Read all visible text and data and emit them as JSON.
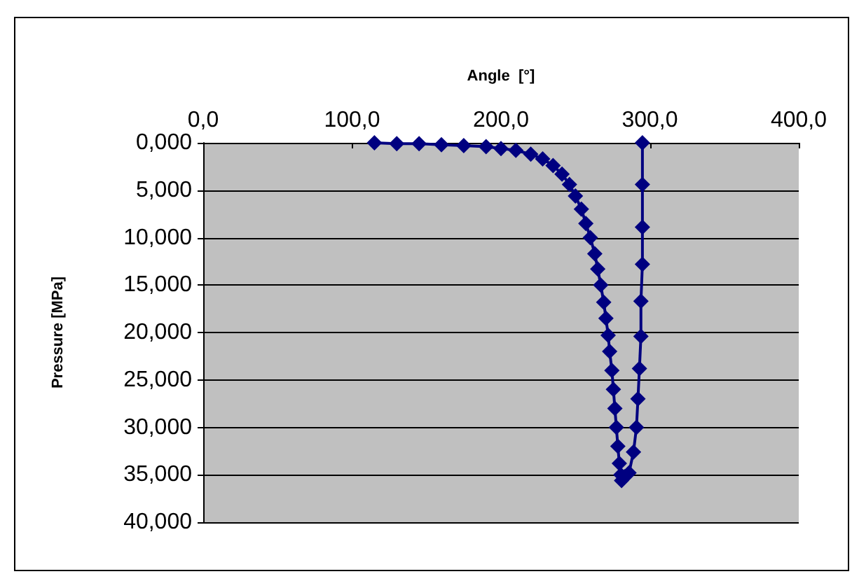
{
  "chart_data": {
    "type": "line",
    "xlabel": "Angle  [°]",
    "ylabel": "Pressure [MPa]",
    "xlim": [
      0,
      400
    ],
    "ylim": [
      40,
      0
    ],
    "xticks": [
      {
        "value": 0,
        "label": "0,0"
      },
      {
        "value": 100,
        "label": "100,0"
      },
      {
        "value": 200,
        "label": "200,0"
      },
      {
        "value": 300,
        "label": "300,0"
      },
      {
        "value": 400,
        "label": "400,0"
      }
    ],
    "yticks": [
      {
        "value": 0,
        "label": "0,000"
      },
      {
        "value": 5,
        "label": "5,000"
      },
      {
        "value": 10,
        "label": "10,000"
      },
      {
        "value": 15,
        "label": "15,000"
      },
      {
        "value": 20,
        "label": "20,000"
      },
      {
        "value": 25,
        "label": "25,000"
      },
      {
        "value": 30,
        "label": "30,000"
      },
      {
        "value": 35,
        "label": "35,000"
      },
      {
        "value": 40,
        "label": "40,000"
      }
    ],
    "grid": "y",
    "marker": "diamond",
    "line_style": "solid",
    "series": [
      {
        "color": "#000080",
        "x": [
          115,
          130,
          145,
          160,
          175,
          190,
          200,
          210,
          220,
          228,
          235,
          241,
          246,
          250,
          254,
          257,
          260,
          263,
          265,
          267,
          269,
          270.5,
          272,
          273,
          274.5,
          275.5,
          276.5,
          277.5,
          278.5,
          279.5,
          280.5,
          281,
          283,
          286,
          289,
          291,
          292,
          293,
          294,
          294,
          295,
          295,
          295,
          295
        ],
        "values": [
          0,
          0.1,
          0.1,
          0.2,
          0.3,
          0.4,
          0.6,
          0.8,
          1.2,
          1.7,
          2.4,
          3.3,
          4.4,
          5.6,
          7.0,
          8.5,
          10,
          11.7,
          13.3,
          15,
          16.8,
          18.5,
          20.3,
          22,
          24,
          26,
          28,
          30,
          32,
          33.8,
          35,
          35.6,
          35.2,
          34.8,
          32.6,
          30,
          27,
          23.8,
          20.4,
          16.7,
          12.8,
          8.9,
          4.4,
          0
        ]
      }
    ]
  }
}
